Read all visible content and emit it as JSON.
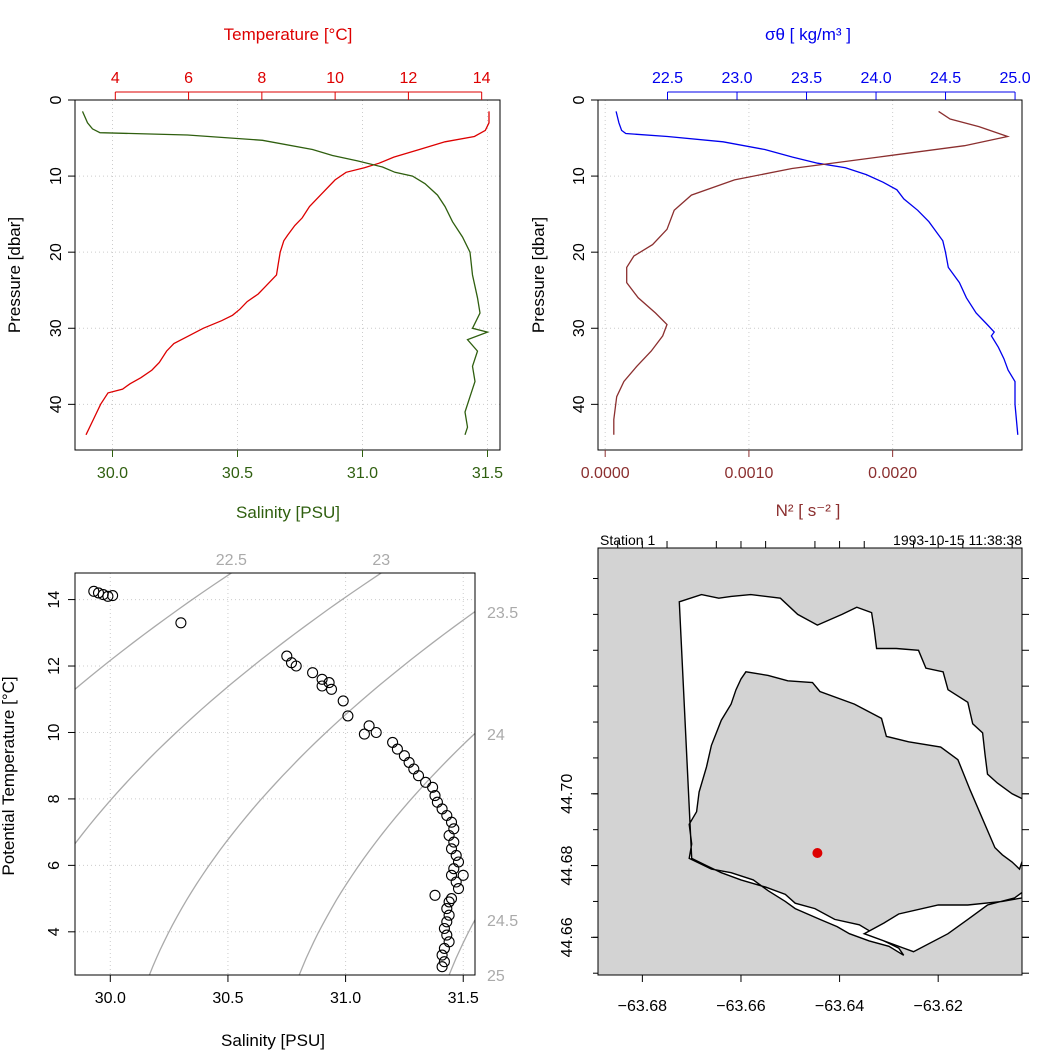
{
  "colors": {
    "temperature": "#dd0000",
    "salinity": "#2f5f0f",
    "sigma": "#0000ee",
    "n2": "#8b2f2f",
    "isopycnal": "#aaaaaa",
    "land": "#d3d3d3",
    "station": "#dd0000",
    "grid": "#cccccc"
  },
  "chart_data": [
    {
      "type": "line",
      "panel": "profile_ts",
      "ylabel": "Pressure [dbar]",
      "ylim": [
        46,
        0
      ],
      "yticks": [
        "0",
        "10",
        "20",
        "30",
        "40"
      ],
      "bottom_axis": {
        "label": "Salinity [PSU]",
        "range": [
          29.85,
          31.55
        ],
        "ticks": [
          "30.0",
          "30.5",
          "31.0",
          "31.5"
        ]
      },
      "top_axis": {
        "label": "Temperature [°C]",
        "range": [
          2.9,
          14.5
        ],
        "ticks": [
          "4",
          "6",
          "8",
          "10",
          "12",
          "14"
        ]
      },
      "grid": true,
      "series": [
        {
          "name": "Temperature",
          "axis": "top",
          "values": [
            [
              14.2,
              1.5
            ],
            [
              14.2,
              3
            ],
            [
              14.1,
              4
            ],
            [
              13.8,
              4.8
            ],
            [
              13.0,
              5.5
            ],
            [
              12.3,
              6.5
            ],
            [
              11.6,
              7.5
            ],
            [
              11.2,
              8.3
            ],
            [
              10.8,
              8.9
            ],
            [
              10.3,
              9.5
            ],
            [
              10.0,
              10.5
            ],
            [
              9.6,
              12.5
            ],
            [
              9.3,
              14
            ],
            [
              9.1,
              15.5
            ],
            [
              8.9,
              16.5
            ],
            [
              8.7,
              17.8
            ],
            [
              8.6,
              18.5
            ],
            [
              8.5,
              20
            ],
            [
              8.45,
              21.5
            ],
            [
              8.4,
              23
            ],
            [
              8.1,
              24.5
            ],
            [
              7.9,
              25.5
            ],
            [
              7.6,
              26.5
            ],
            [
              7.4,
              27.5
            ],
            [
              7.2,
              28.3
            ],
            [
              6.9,
              29
            ],
            [
              6.4,
              30
            ],
            [
              6.0,
              31
            ],
            [
              5.6,
              32
            ],
            [
              5.4,
              33
            ],
            [
              5.2,
              34.5
            ],
            [
              5.0,
              35.5
            ],
            [
              4.7,
              36.5
            ],
            [
              4.4,
              37.3
            ],
            [
              4.2,
              38
            ],
            [
              3.8,
              38.5
            ],
            [
              3.6,
              40
            ],
            [
              3.4,
              42
            ],
            [
              3.2,
              44
            ]
          ]
        },
        {
          "name": "Salinity",
          "axis": "bottom",
          "values": [
            [
              29.88,
              1.5
            ],
            [
              29.9,
              3
            ],
            [
              29.92,
              3.8
            ],
            [
              29.95,
              4.3
            ],
            [
              30.3,
              4.6
            ],
            [
              30.6,
              5.3
            ],
            [
              30.8,
              6.5
            ],
            [
              30.88,
              7.3
            ],
            [
              30.98,
              8
            ],
            [
              31.08,
              8.8
            ],
            [
              31.13,
              9.5
            ],
            [
              31.2,
              10
            ],
            [
              31.25,
              11
            ],
            [
              31.3,
              12.5
            ],
            [
              31.33,
              14
            ],
            [
              31.36,
              16
            ],
            [
              31.4,
              18
            ],
            [
              31.43,
              20
            ],
            [
              31.44,
              23
            ],
            [
              31.46,
              26
            ],
            [
              31.47,
              28
            ],
            [
              31.44,
              30
            ],
            [
              31.5,
              30.5
            ],
            [
              31.42,
              31.5
            ],
            [
              31.46,
              33
            ],
            [
              31.44,
              35
            ],
            [
              31.45,
              37
            ],
            [
              31.43,
              39
            ],
            [
              31.41,
              41
            ],
            [
              31.42,
              43
            ],
            [
              31.41,
              44
            ]
          ]
        }
      ]
    },
    {
      "type": "line",
      "panel": "profile_density",
      "ylabel": "Pressure [dbar]",
      "ylim": [
        46,
        0
      ],
      "yticks": [
        "0",
        "10",
        "20",
        "30",
        "40"
      ],
      "bottom_axis": {
        "label": "N² [ s⁻² ]",
        "range": [
          -5e-05,
          0.0029
        ],
        "ticks": [
          "0.0000",
          "0.0010",
          "0.0020"
        ]
      },
      "top_axis": {
        "label": "σθ [ kg/m³ ]",
        "range": [
          22.0,
          25.05
        ],
        "ticks": [
          "22.5",
          "23.0",
          "23.5",
          "24.0",
          "24.5",
          "25.0"
        ]
      },
      "grid": true,
      "series": [
        {
          "name": "σθ",
          "axis": "top",
          "values": [
            [
              22.13,
              1.5
            ],
            [
              22.15,
              3
            ],
            [
              22.17,
              4
            ],
            [
              22.2,
              4.4
            ],
            [
              22.5,
              4.8
            ],
            [
              22.9,
              5.5
            ],
            [
              23.2,
              6.5
            ],
            [
              23.4,
              7.5
            ],
            [
              23.58,
              8.3
            ],
            [
              23.78,
              8.9
            ],
            [
              23.93,
              9.8
            ],
            [
              24.05,
              10.8
            ],
            [
              24.15,
              11.8
            ],
            [
              24.2,
              13
            ],
            [
              24.3,
              14.5
            ],
            [
              24.38,
              16
            ],
            [
              24.42,
              17
            ],
            [
              24.48,
              18.5
            ],
            [
              24.5,
              20
            ],
            [
              24.52,
              22
            ],
            [
              24.6,
              24
            ],
            [
              24.65,
              26
            ],
            [
              24.72,
              28
            ],
            [
              24.8,
              29.5
            ],
            [
              24.85,
              30.5
            ],
            [
              24.83,
              31
            ],
            [
              24.88,
              32.5
            ],
            [
              24.92,
              34
            ],
            [
              24.95,
              35.5
            ],
            [
              25.0,
              37
            ],
            [
              25.0,
              40
            ],
            [
              25.01,
              42
            ],
            [
              25.02,
              44
            ]
          ]
        },
        {
          "name": "N²",
          "axis": "bottom",
          "values": [
            [
              0.00232,
              1.5
            ],
            [
              0.0024,
              2.5
            ],
            [
              0.0026,
              3.5
            ],
            [
              0.0028,
              4.8
            ],
            [
              0.0025,
              6
            ],
            [
              0.0019,
              7.5
            ],
            [
              0.0013,
              9
            ],
            [
              0.0009,
              10.5
            ],
            [
              0.0006,
              12.5
            ],
            [
              0.00048,
              14.5
            ],
            [
              0.00043,
              17
            ],
            [
              0.00033,
              19
            ],
            [
              0.0002,
              20.5
            ],
            [
              0.00015,
              22
            ],
            [
              0.00015,
              24
            ],
            [
              0.00023,
              26
            ],
            [
              0.00035,
              28
            ],
            [
              0.00043,
              29.5
            ],
            [
              0.0004,
              31
            ],
            [
              0.00032,
              33
            ],
            [
              0.00022,
              35
            ],
            [
              0.00013,
              37
            ],
            [
              8e-05,
              39
            ],
            [
              6e-05,
              42
            ],
            [
              6e-05,
              44
            ]
          ]
        }
      ]
    },
    {
      "type": "scatter",
      "panel": "ts_diagram",
      "xlabel": "Salinity [PSU]",
      "ylabel": "Potential Temperature [°C]",
      "xlim": [
        29.85,
        31.55
      ],
      "ylim": [
        2.7,
        14.8
      ],
      "xticks": [
        "30.0",
        "30.5",
        "31.0",
        "31.5"
      ],
      "yticks": [
        "4",
        "6",
        "8",
        "10",
        "12",
        "14"
      ],
      "grid": true,
      "isopycnal_labels": [
        "22.5",
        "23",
        "23.5",
        "24",
        "24.5",
        "25"
      ],
      "points": [
        [
          29.93,
          14.25
        ],
        [
          29.95,
          14.2
        ],
        [
          29.97,
          14.15
        ],
        [
          29.99,
          14.1
        ],
        [
          30.01,
          14.12
        ],
        [
          30.3,
          13.3
        ],
        [
          30.75,
          12.3
        ],
        [
          30.77,
          12.1
        ],
        [
          30.79,
          12.0
        ],
        [
          30.86,
          11.8
        ],
        [
          30.9,
          11.6
        ],
        [
          30.93,
          11.5
        ],
        [
          30.9,
          11.4
        ],
        [
          30.94,
          11.3
        ],
        [
          30.99,
          10.95
        ],
        [
          31.01,
          10.5
        ],
        [
          31.1,
          10.2
        ],
        [
          31.08,
          9.95
        ],
        [
          31.13,
          10.0
        ],
        [
          31.2,
          9.7
        ],
        [
          31.22,
          9.5
        ],
        [
          31.25,
          9.3
        ],
        [
          31.27,
          9.1
        ],
        [
          31.29,
          8.9
        ],
        [
          31.31,
          8.7
        ],
        [
          31.34,
          8.5
        ],
        [
          31.37,
          8.35
        ],
        [
          31.38,
          8.1
        ],
        [
          31.39,
          7.9
        ],
        [
          31.41,
          7.7
        ],
        [
          31.43,
          7.5
        ],
        [
          31.45,
          7.3
        ],
        [
          31.46,
          7.1
        ],
        [
          31.44,
          6.9
        ],
        [
          31.46,
          6.7
        ],
        [
          31.45,
          6.5
        ],
        [
          31.47,
          6.3
        ],
        [
          31.48,
          6.1
        ],
        [
          31.46,
          5.9
        ],
        [
          31.45,
          5.7
        ],
        [
          31.5,
          5.7
        ],
        [
          31.47,
          5.5
        ],
        [
          31.48,
          5.3
        ],
        [
          31.38,
          5.1
        ],
        [
          31.45,
          5.0
        ],
        [
          31.44,
          4.9
        ],
        [
          31.43,
          4.7
        ],
        [
          31.44,
          4.5
        ],
        [
          31.43,
          4.3
        ],
        [
          31.42,
          4.1
        ],
        [
          31.43,
          3.9
        ],
        [
          31.44,
          3.7
        ],
        [
          31.42,
          3.5
        ],
        [
          31.41,
          3.3
        ],
        [
          31.42,
          3.1
        ],
        [
          31.41,
          2.95
        ]
      ]
    }
  ],
  "map": {
    "station_label": "Station 1",
    "datetime": "1993-10-15 11:38:38",
    "xlim": [
      -63.689,
      -63.603
    ],
    "ylim": [
      44.6495,
      44.7685
    ],
    "xticks": [
      "-63.68",
      "-63.66",
      "-63.64",
      "-63.62"
    ],
    "yticks": [
      "44.66",
      "44.68",
      "44.70"
    ],
    "station": {
      "lon": -63.6445,
      "lat": 44.6835
    },
    "water_polygon": [
      [
        -63.6725,
        44.7535
      ],
      [
        -63.668,
        44.7555
      ],
      [
        -63.6645,
        44.7545
      ],
      [
        -63.662,
        44.755
      ],
      [
        -63.658,
        44.7555
      ],
      [
        -63.652,
        44.7545
      ],
      [
        -63.6485,
        44.75
      ],
      [
        -63.6445,
        44.747
      ],
      [
        -63.6395,
        44.75
      ],
      [
        -63.6365,
        44.752
      ],
      [
        -63.6335,
        44.7505
      ],
      [
        -63.633,
        44.746
      ],
      [
        -63.6325,
        44.7405
      ],
      [
        -63.6285,
        44.7405
      ],
      [
        -63.624,
        44.74
      ],
      [
        -63.6225,
        44.735
      ],
      [
        -63.619,
        44.734
      ],
      [
        -63.618,
        44.729
      ],
      [
        -63.614,
        44.7255
      ],
      [
        -63.613,
        44.7195
      ],
      [
        -63.611,
        44.717
      ],
      [
        -63.6105,
        44.711
      ],
      [
        -63.61,
        44.7055
      ],
      [
        -63.608,
        44.703
      ],
      [
        -63.605,
        44.7
      ],
      [
        -63.602,
        44.698
      ],
      [
        -63.602,
        44.685
      ],
      [
        -63.6035,
        44.679
      ],
      [
        -63.605,
        44.681
      ],
      [
        -63.607,
        44.683
      ],
      [
        -63.6085,
        44.685
      ],
      [
        -63.6135,
        44.701
      ],
      [
        -63.616,
        44.7095
      ],
      [
        -63.6195,
        44.713
      ],
      [
        -63.626,
        44.7145
      ],
      [
        -63.6305,
        44.716
      ],
      [
        -63.6315,
        44.721
      ],
      [
        -63.637,
        44.725
      ],
      [
        -63.644,
        44.7285
      ],
      [
        -63.6455,
        44.731
      ],
      [
        -63.6505,
        44.7315
      ],
      [
        -63.6545,
        44.733
      ],
      [
        -63.659,
        44.734
      ],
      [
        -63.66,
        44.732
      ],
      [
        -63.661,
        44.729
      ],
      [
        -63.662,
        44.725
      ],
      [
        -63.664,
        44.7205
      ],
      [
        -63.666,
        44.7135
      ],
      [
        -63.667,
        44.7075
      ],
      [
        -63.6685,
        44.7005
      ],
      [
        -63.669,
        44.695
      ],
      [
        -63.6705,
        44.6915
      ],
      [
        -63.67,
        44.686
      ],
      [
        -63.6705,
        44.682
      ],
      [
        -63.666,
        44.679
      ],
      [
        -63.662,
        44.678
      ],
      [
        -63.6575,
        44.676
      ],
      [
        -63.6545,
        44.673
      ],
      [
        -63.651,
        44.67
      ],
      [
        -63.649,
        44.668
      ],
      [
        -63.644,
        44.665
      ],
      [
        -63.6405,
        44.663
      ],
      [
        -63.638,
        44.661
      ],
      [
        -63.634,
        44.659
      ],
      [
        -63.63,
        44.6575
      ],
      [
        -63.627,
        44.655
      ],
      [
        -63.628,
        44.657
      ],
      [
        -63.631,
        44.659
      ],
      [
        -63.633,
        44.661
      ],
      [
        -63.636,
        44.6635
      ],
      [
        -63.641,
        44.665
      ],
      [
        -63.645,
        44.668
      ],
      [
        -63.649,
        44.6695
      ],
      [
        -63.651,
        44.672
      ],
      [
        -63.655,
        44.674
      ],
      [
        -63.66,
        44.676
      ],
      [
        -63.664,
        44.678
      ],
      [
        -63.667,
        44.68
      ],
      [
        -63.67,
        44.682
      ]
    ],
    "east_water_polygon": [
      [
        -63.635,
        44.661
      ],
      [
        -63.627,
        44.657
      ],
      [
        -63.625,
        44.656
      ],
      [
        -63.618,
        44.661
      ],
      [
        -63.614,
        44.665
      ],
      [
        -63.61,
        44.669
      ],
      [
        -63.6045,
        44.671
      ],
      [
        -63.603,
        44.6725
      ],
      [
        -63.603,
        44.671
      ],
      [
        -63.607,
        44.67
      ],
      [
        -63.614,
        44.669
      ],
      [
        -63.62,
        44.669
      ],
      [
        -63.628,
        44.6665
      ],
      [
        -63.631,
        44.664
      ]
    ]
  }
}
